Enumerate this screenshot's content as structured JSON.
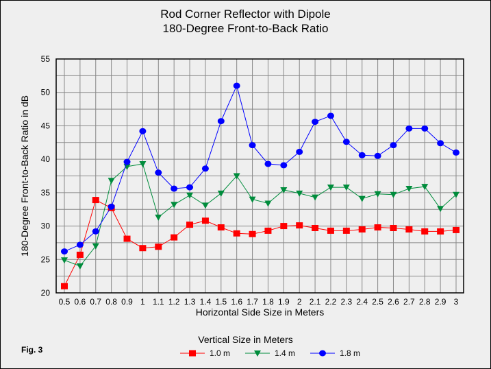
{
  "chart_data": {
    "type": "line",
    "title": "Rod Corner Reflector with Dipole",
    "subtitle": "180-Degree Front-to-Back Ratio",
    "xlabel": "Horizontal Side Size in Meters",
    "ylabel": "180-Degree Front-to-Back Ratio in dB",
    "x": [
      "0.5",
      "0.6",
      "0.7",
      "0.8",
      "0.9",
      "1",
      "1.1",
      "1.2",
      "1.3",
      "1.4",
      "1.5",
      "1.6",
      "1.7",
      "1.8",
      "1.9",
      "2",
      "2.1",
      "2.2",
      "2.3",
      "2.4",
      "2.5",
      "2.6",
      "2.7",
      "2.8",
      "2.9",
      "3"
    ],
    "ylim": [
      20,
      55
    ],
    "yticks": [
      "20",
      "25",
      "30",
      "35",
      "40",
      "45",
      "50",
      "55"
    ],
    "grid": true,
    "legend_title": "Vertical Size in Meters",
    "legend_position": "bottom",
    "series": [
      {
        "name": "1.0 m",
        "color": "#ff0000",
        "marker": "square",
        "values": [
          21.0,
          25.7,
          33.9,
          32.7,
          28.1,
          26.7,
          26.9,
          28.3,
          30.2,
          30.8,
          29.8,
          28.9,
          28.8,
          29.3,
          30.0,
          30.1,
          29.7,
          29.3,
          29.3,
          29.5,
          29.8,
          29.7,
          29.5,
          29.2,
          29.2,
          29.4
        ]
      },
      {
        "name": "1.4 m",
        "color": "#008c3c",
        "marker": "triangle-down",
        "values": [
          24.9,
          24.0,
          27.0,
          36.8,
          38.9,
          39.3,
          31.3,
          33.2,
          34.6,
          33.1,
          34.9,
          37.5,
          34.0,
          33.4,
          35.4,
          34.9,
          34.3,
          35.8,
          35.8,
          34.1,
          34.8,
          34.7,
          35.6,
          35.9,
          32.6,
          34.7
        ]
      },
      {
        "name": "1.8 m",
        "color": "#0000ff",
        "marker": "circle",
        "values": [
          26.2,
          27.2,
          29.2,
          32.9,
          39.6,
          44.2,
          38.0,
          35.6,
          35.8,
          38.6,
          45.7,
          51.0,
          42.1,
          39.3,
          39.1,
          41.1,
          45.6,
          46.5,
          42.6,
          40.6,
          40.5,
          42.1,
          44.6,
          44.6,
          42.4,
          41.0
        ]
      }
    ],
    "annotation": "Fig. 3"
  }
}
